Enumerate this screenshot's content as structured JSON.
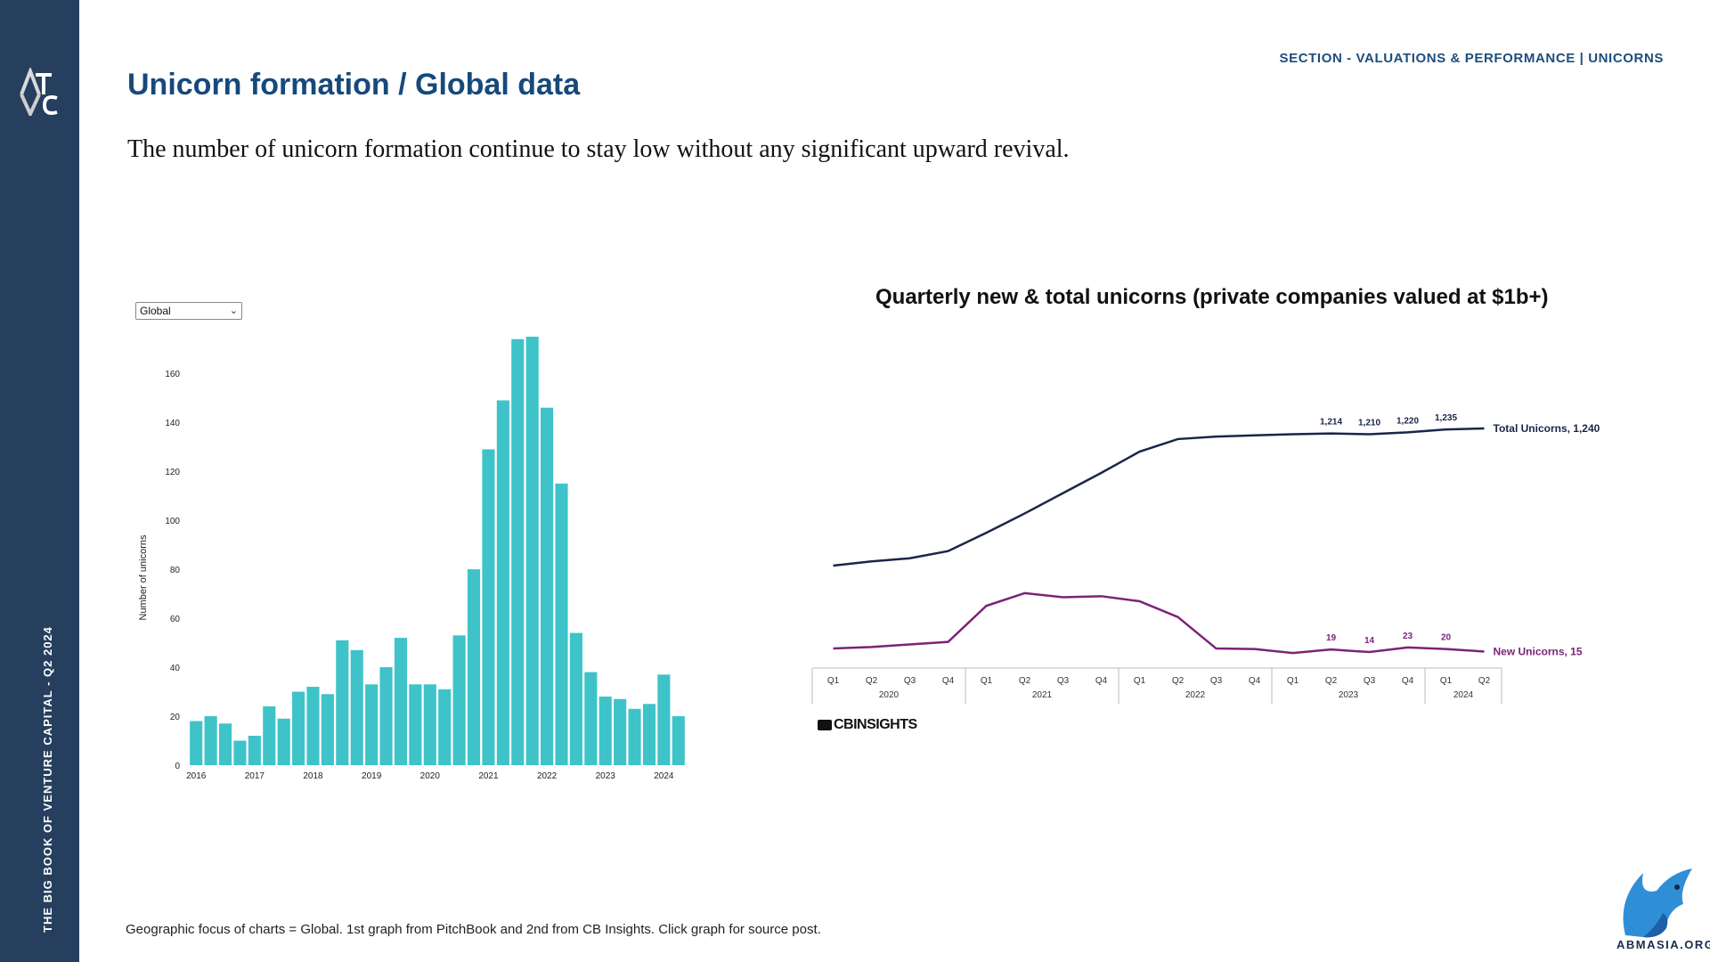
{
  "header": {
    "section_label": "SECTION - VALUATIONS & PERFORMANCE | UNICORNS",
    "title": "Unicorn formation / Global data",
    "subtitle": "The number of unicorn formation continue to stay low without any significant upward revival."
  },
  "sidebar": {
    "logo_text": "ATVC",
    "vertical_text": "THE BIG BOOK OF VENTURE CAPITAL - Q2 2024"
  },
  "filter": {
    "selected": "Global"
  },
  "chart2_title": "Quarterly new & total unicorns (private companies valued at $1b+)",
  "source_brand": "CBINSIGHTS",
  "footnote": "Geographic focus of charts = Global. 1st graph from PitchBook and 2nd from CB Insights. Click graph for source post.",
  "corner_logo_text": "ABMASIA.ORG",
  "colors": {
    "sidebar": "#263f5e",
    "title": "#17497b",
    "bar": "#3ec3c9",
    "total_line": "#1b2547",
    "new_line": "#7a2379"
  },
  "chart_data": [
    {
      "type": "bar",
      "ylabel": "Number of unicorns",
      "ylim": [
        0,
        175
      ],
      "yticks": [
        0,
        20,
        40,
        60,
        80,
        100,
        120,
        140,
        160
      ],
      "xtick_labels": [
        "2016",
        "2017",
        "2018",
        "2019",
        "2020",
        "2021",
        "2022",
        "2023",
        "2024"
      ],
      "grid": false,
      "values": [
        18,
        20,
        17,
        10,
        12,
        24,
        19,
        30,
        32,
        29,
        51,
        47,
        33,
        40,
        52,
        33,
        33,
        31,
        53,
        80,
        129,
        149,
        174,
        175,
        146,
        115,
        54,
        38,
        28,
        27,
        23,
        25,
        37,
        20
      ]
    },
    {
      "type": "line",
      "title": "Quarterly new & total unicorns (private companies valued at $1b+)",
      "categories": [
        "Q1 2020",
        "Q2 2020",
        "Q3 2020",
        "Q4 2020",
        "Q1 2021",
        "Q2 2021",
        "Q3 2021",
        "Q4 2021",
        "Q1 2022",
        "Q2 2022",
        "Q3 2022",
        "Q4 2022",
        "Q1 2023",
        "Q2 2023",
        "Q3 2023",
        "Q4 2023",
        "Q1 2024",
        "Q2 2024"
      ],
      "quarter_labels": [
        "Q1",
        "Q2",
        "Q3",
        "Q4",
        "Q1",
        "Q2",
        "Q3",
        "Q4",
        "Q1",
        "Q2",
        "Q3",
        "Q4",
        "Q1",
        "Q2",
        "Q3",
        "Q4",
        "Q1",
        "Q2"
      ],
      "year_groups": [
        {
          "label": "2020",
          "count": 4
        },
        {
          "label": "2021",
          "count": 4
        },
        {
          "label": "2022",
          "count": 4
        },
        {
          "label": "2023",
          "count": 4
        },
        {
          "label": "2024",
          "count": 2
        }
      ],
      "series": [
        {
          "name": "Total Unicorns, 1,240",
          "values": [
            530,
            552,
            568,
            605,
            700,
            800,
            905,
            1010,
            1120,
            1185,
            1198,
            1204,
            1210,
            1214,
            1210,
            1220,
            1235,
            1240
          ],
          "point_labels": [
            null,
            null,
            null,
            null,
            null,
            null,
            null,
            null,
            null,
            null,
            null,
            null,
            null,
            "1,214",
            "1,210",
            "1,220",
            "1,235",
            null
          ]
        },
        {
          "name": "New Unicorns, 15",
          "values": [
            21,
            24,
            29,
            34,
            105,
            130,
            122,
            124,
            114,
            83,
            21,
            20,
            12,
            19,
            14,
            23,
            20,
            15
          ],
          "point_labels": [
            null,
            null,
            null,
            null,
            null,
            null,
            null,
            null,
            null,
            null,
            null,
            null,
            null,
            "19",
            "14",
            "23",
            "20",
            null
          ]
        }
      ]
    }
  ]
}
